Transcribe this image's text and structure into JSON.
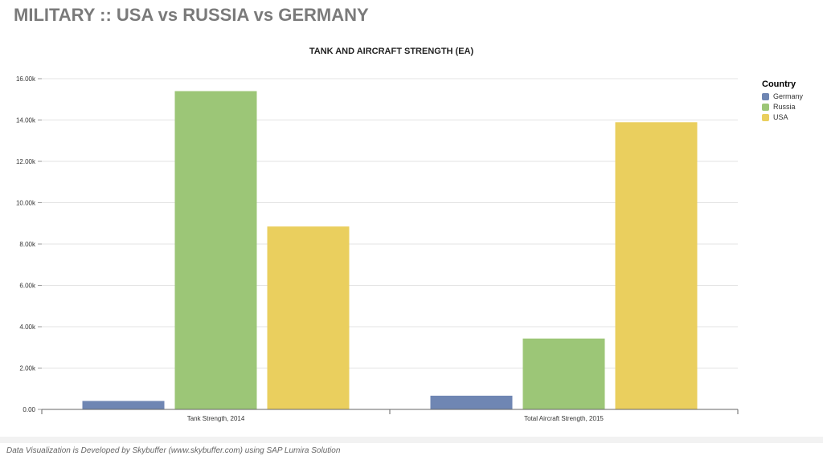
{
  "page": {
    "title": "MILITARY :: USA vs RUSSIA vs GERMANY",
    "footer": "Data Visualization is Developed by Skybuffer (www.skybuffer.com) using SAP Lumira Solution"
  },
  "chart_data": {
    "type": "bar",
    "title": "TANK AND AIRCRAFT STRENGTH (EA)",
    "xlabel": "",
    "ylabel": "",
    "categories": [
      "Tank Strength, 2014",
      "Total Aircraft Strength, 2015"
    ],
    "series": [
      {
        "name": "Germany",
        "color": "#6f86b3",
        "values": [
          408,
          663
        ]
      },
      {
        "name": "Russia",
        "color": "#9cc677",
        "values": [
          15398,
          3429
        ]
      },
      {
        "name": "USA",
        "color": "#eacf5e",
        "values": [
          8848,
          13892
        ]
      }
    ],
    "ylim": [
      0,
      16000
    ],
    "yticks": [
      0,
      2000,
      4000,
      6000,
      8000,
      10000,
      12000,
      14000,
      16000
    ],
    "ytick_labels": [
      "0.00",
      "2.00k",
      "4.00k",
      "6.00k",
      "8.00k",
      "10.00k",
      "12.00k",
      "14.00k",
      "16.00k"
    ],
    "grid": true,
    "legend": {
      "title": "Country",
      "position": "right"
    }
  }
}
